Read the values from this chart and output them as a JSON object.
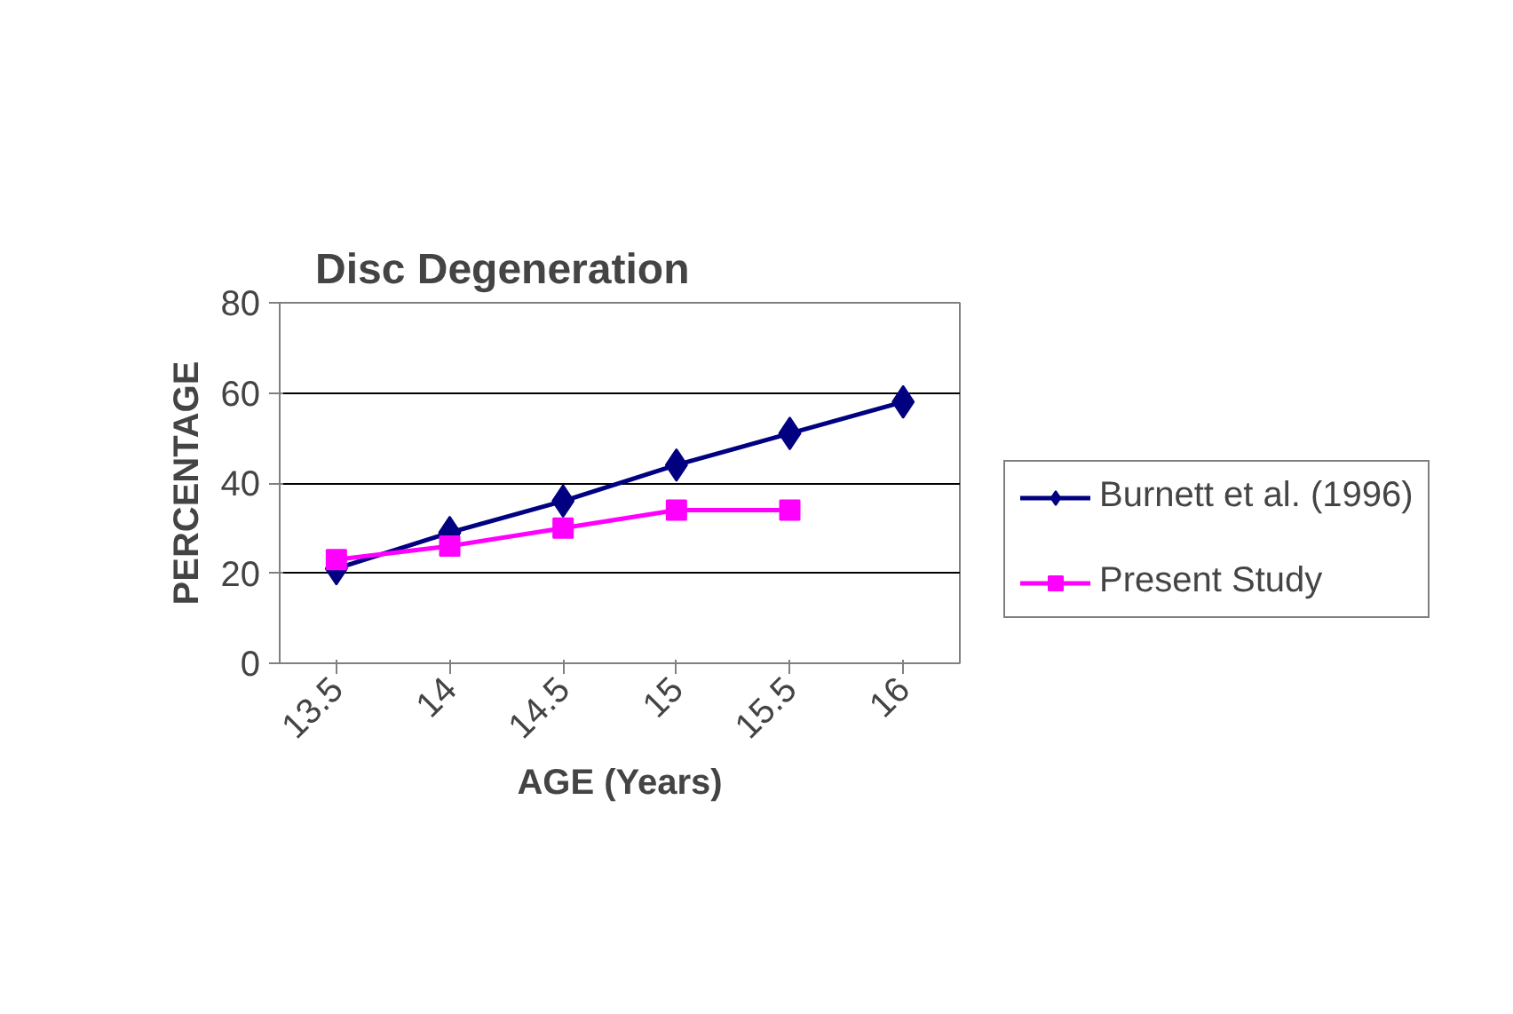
{
  "chart_data": {
    "type": "line",
    "title": "Disc Degeneration",
    "xlabel": "AGE (Years)",
    "ylabel": "PERCENTAGE",
    "categories": [
      "13.5",
      "14",
      "14.5",
      "15",
      "15.5",
      "16"
    ],
    "series": [
      {
        "name": "Burnett et al. (1996)",
        "color": "#000080",
        "marker": "diamond",
        "values": [
          21,
          29,
          36,
          44,
          51,
          58
        ]
      },
      {
        "name": "Present Study",
        "color": "#ff00ff",
        "marker": "square",
        "values": [
          23,
          26,
          30,
          34,
          34,
          null
        ]
      }
    ],
    "ylim": [
      0,
      80
    ],
    "yticks": [
      0,
      20,
      40,
      60,
      80
    ],
    "grid": "y",
    "legend": "right"
  }
}
